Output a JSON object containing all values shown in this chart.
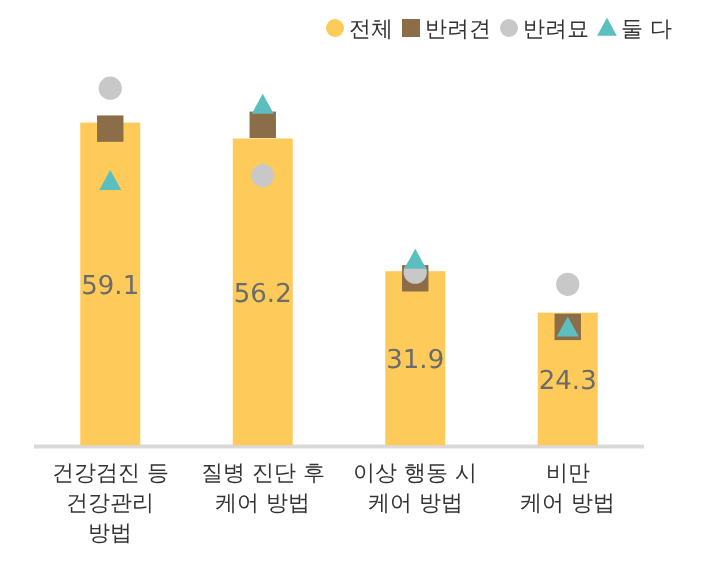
{
  "chart_data": {
    "type": "bar",
    "categories": [
      "건강검진 등\n건강관리\n방법",
      "질병 진단 후\n케어 방법",
      "이상 행동 시\n케어 방법",
      "비만\n케어 방법"
    ],
    "series": [
      {
        "name": "전체",
        "type": "bar",
        "color": "#fecb5a",
        "values": [
          59.1,
          56.2,
          31.9,
          24.3
        ],
        "data_labels": true
      },
      {
        "name": "반려견",
        "type": "scatter",
        "marker": "square",
        "color": "#8b6d47",
        "values": [
          58.0,
          58.7,
          30.6,
          21.7
        ]
      },
      {
        "name": "반려묘",
        "type": "scatter",
        "marker": "circle",
        "color": "#c8c8c8",
        "values": [
          65.4,
          49.4,
          31.7,
          29.5
        ]
      },
      {
        "name": "둘 다",
        "type": "scatter",
        "marker": "triangle",
        "color": "#5bbfbf",
        "values": [
          48.3,
          62.3,
          33.9,
          21.5
        ]
      }
    ],
    "legend": "top right"
  }
}
